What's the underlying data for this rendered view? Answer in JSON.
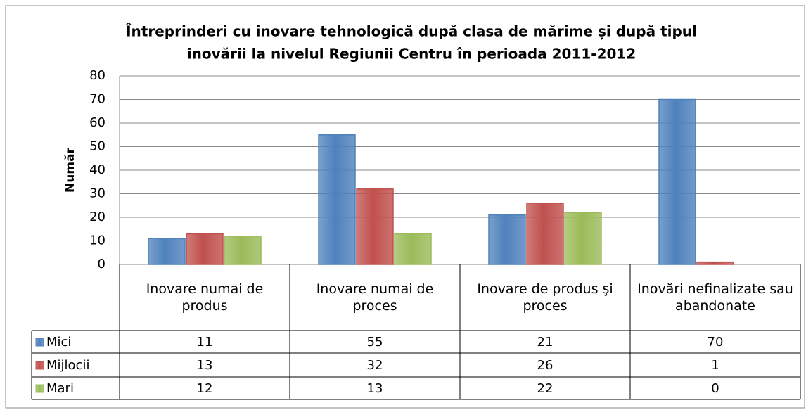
{
  "chart_data": {
    "type": "bar",
    "title": "Întreprinderi cu inovare tehnologică după clasa de mărime și după tipul inovării la nivelul Regiunii Centru în perioada 2011-2012",
    "title_lines": [
      "Întreprinderi cu inovare tehnologică după clasa de mărime și după tipul",
      "inovării la nivelul Regiunii Centru în perioada 2011-2012"
    ],
    "y_label": "Număr",
    "categories": [
      "Inovare numai de produs",
      "Inovare numai de proces",
      "Inovare de produs şi proces",
      "Inovări nefinalizate sau abandonate"
    ],
    "series": [
      {
        "name": "Mici",
        "color": "#4f81bd",
        "values": [
          11,
          55,
          21,
          70
        ]
      },
      {
        "name": "Mijlocii",
        "color": "#c0504d",
        "values": [
          13,
          32,
          26,
          1
        ]
      },
      {
        "name": "Mari",
        "color": "#9bbb59",
        "values": [
          12,
          13,
          22,
          0
        ]
      }
    ],
    "ylim": [
      0,
      80
    ],
    "yticks": [
      0,
      10,
      20,
      30,
      40,
      50,
      60,
      70,
      80
    ],
    "grid": true
  }
}
